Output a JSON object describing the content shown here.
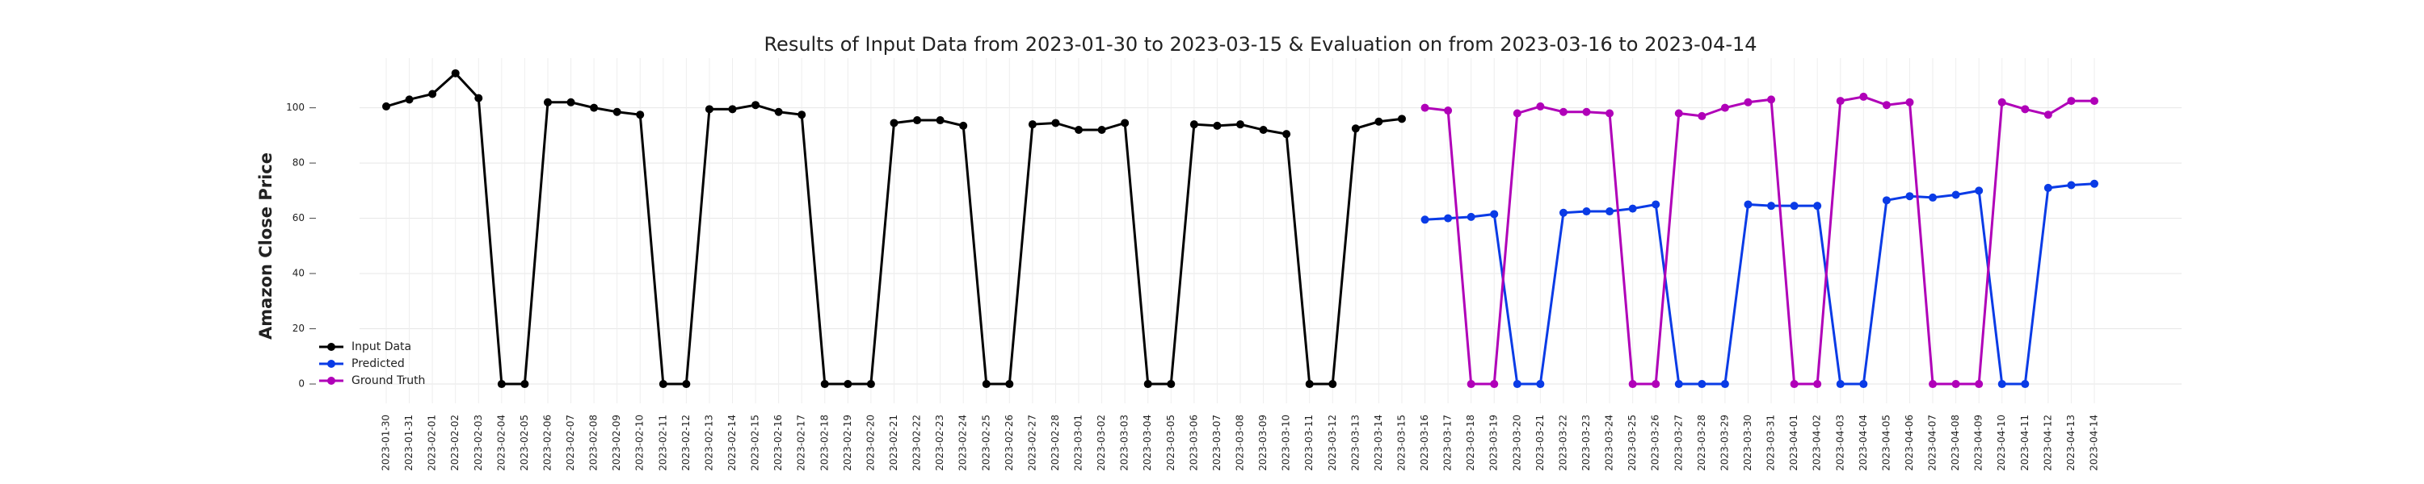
{
  "chart_data": {
    "type": "line",
    "title": "Results of Input Data from 2023-01-30 to 2023-03-15 & Evaluation on from 2023-03-16 to 2023-04-14",
    "ylabel": "Amazon Close Price",
    "categories": [
      "2023-01-30",
      "2023-01-31",
      "2023-02-01",
      "2023-02-02",
      "2023-02-03",
      "2023-02-04",
      "2023-02-05",
      "2023-02-06",
      "2023-02-07",
      "2023-02-08",
      "2023-02-09",
      "2023-02-10",
      "2023-02-11",
      "2023-02-12",
      "2023-02-13",
      "2023-02-14",
      "2023-02-15",
      "2023-02-16",
      "2023-02-17",
      "2023-02-18",
      "2023-02-19",
      "2023-02-20",
      "2023-02-21",
      "2023-02-22",
      "2023-02-23",
      "2023-02-24",
      "2023-02-25",
      "2023-02-26",
      "2023-02-27",
      "2023-02-28",
      "2023-03-01",
      "2023-03-02",
      "2023-03-03",
      "2023-03-04",
      "2023-03-05",
      "2023-03-06",
      "2023-03-07",
      "2023-03-08",
      "2023-03-09",
      "2023-03-10",
      "2023-03-11",
      "2023-03-12",
      "2023-03-13",
      "2023-03-14",
      "2023-03-15",
      "2023-03-16",
      "2023-03-17",
      "2023-03-18",
      "2023-03-19",
      "2023-03-20",
      "2023-03-21",
      "2023-03-22",
      "2023-03-23",
      "2023-03-24",
      "2023-03-25",
      "2023-03-26",
      "2023-03-27",
      "2023-03-28",
      "2023-03-29",
      "2023-03-30",
      "2023-03-31",
      "2023-04-01",
      "2023-04-02",
      "2023-04-03",
      "2023-04-04",
      "2023-04-05",
      "2023-04-06",
      "2023-04-07",
      "2023-04-08",
      "2023-04-09",
      "2023-04-10",
      "2023-04-11",
      "2023-04-12",
      "2023-04-13",
      "2023-04-14"
    ],
    "series": [
      {
        "name": "Input Data",
        "color": "#000000",
        "values": [
          100.5,
          103,
          105,
          112.5,
          103.5,
          0,
          0,
          102,
          102,
          100,
          98.5,
          97.5,
          0,
          0,
          99.5,
          99.5,
          101,
          98.5,
          97.5,
          0,
          0,
          0,
          94.5,
          95.5,
          95.5,
          93.5,
          0,
          0,
          94,
          94.5,
          92,
          92,
          94.5,
          0,
          0,
          94,
          93.5,
          94,
          92,
          90.5,
          0,
          0,
          92.5,
          95,
          96,
          null,
          null,
          null,
          null,
          null,
          null,
          null,
          null,
          null,
          null,
          null,
          null,
          null,
          null,
          null,
          null,
          null,
          null,
          null,
          null,
          null,
          null,
          null,
          null,
          null,
          null,
          null,
          null,
          null,
          null
        ]
      },
      {
        "name": "Predicted",
        "color": "#0a3be6",
        "values": [
          null,
          null,
          null,
          null,
          null,
          null,
          null,
          null,
          null,
          null,
          null,
          null,
          null,
          null,
          null,
          null,
          null,
          null,
          null,
          null,
          null,
          null,
          null,
          null,
          null,
          null,
          null,
          null,
          null,
          null,
          null,
          null,
          null,
          null,
          null,
          null,
          null,
          null,
          null,
          null,
          null,
          null,
          null,
          null,
          null,
          59.5,
          60,
          60.5,
          61.5,
          0,
          0,
          62,
          62.5,
          62.5,
          63.5,
          65,
          0,
          0,
          0,
          65,
          64.5,
          64.5,
          64.5,
          0,
          0,
          66.5,
          68,
          67.5,
          68.5,
          70,
          0,
          0,
          71,
          72,
          72.5
        ]
      },
      {
        "name": "Ground Truth",
        "color": "#b000b8",
        "values": [
          null,
          null,
          null,
          null,
          null,
          null,
          null,
          null,
          null,
          null,
          null,
          null,
          null,
          null,
          null,
          null,
          null,
          null,
          null,
          null,
          null,
          null,
          null,
          null,
          null,
          null,
          null,
          null,
          null,
          null,
          null,
          null,
          null,
          null,
          null,
          null,
          null,
          null,
          null,
          null,
          null,
          null,
          null,
          null,
          null,
          100,
          99,
          0,
          0,
          98,
          100.5,
          98.5,
          98.5,
          98,
          0,
          0,
          98,
          97,
          100,
          102,
          103,
          0,
          0,
          102.5,
          104,
          101,
          102,
          0,
          0,
          0,
          102,
          99.5,
          97.5,
          102.5,
          102.5
        ]
      }
    ],
    "ylim": [
      -7,
      118
    ],
    "yticks": [
      0,
      20,
      40,
      60,
      80,
      100
    ],
    "grid": true,
    "legend": "lower left"
  }
}
